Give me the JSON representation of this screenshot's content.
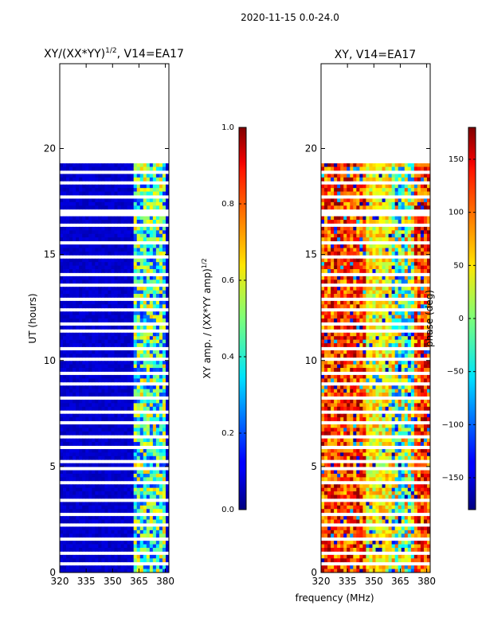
{
  "chart_data": {
    "suptitle": "2020-11-15 0.0-24.0",
    "xlabel_shared": "frequency (MHz)",
    "panels": [
      {
        "type": "heatmap",
        "title_main": "XY/(XX*YY)",
        "title_sup": "1/2",
        "title_tail": ", V14=EA17",
        "ylabel": "UT (hours)",
        "xlim": [
          320,
          382
        ],
        "ylim": [
          0,
          24
        ],
        "xticks": [
          "320",
          "335",
          "350",
          "365",
          "380"
        ],
        "xtick_values": [
          320,
          335,
          350,
          365,
          380
        ],
        "yticks": [
          "0",
          "5",
          "10",
          "15",
          "20"
        ],
        "ytick_values": [
          0,
          5,
          10,
          15,
          20
        ],
        "data_ut_range": [
          0,
          19.3
        ],
        "colorbar": {
          "label_main": "XY amp. / (XX*YY amp)",
          "label_sup": "1/2",
          "range": [
            0.0,
            1.0
          ],
          "ticks": [
            "0.0",
            "0.2",
            "0.4",
            "0.6",
            "0.8",
            "1.0"
          ],
          "tick_values": [
            0.0,
            0.2,
            0.4,
            0.6,
            0.8,
            1.0
          ]
        }
      },
      {
        "type": "heatmap",
        "title": "XY, V14=EA17",
        "ylabel": "",
        "xlim": [
          320,
          382
        ],
        "ylim": [
          0,
          24
        ],
        "xticks": [
          "320",
          "335",
          "350",
          "365",
          "380"
        ],
        "xtick_values": [
          320,
          335,
          350,
          365,
          380
        ],
        "yticks": [
          "0",
          "5",
          "10",
          "15",
          "20"
        ],
        "ytick_values": [
          0,
          5,
          10,
          15,
          20
        ],
        "data_ut_range": [
          0,
          19.3
        ],
        "colorbar": {
          "label": "phase (deg)",
          "range": [
            -180,
            180
          ],
          "ticks": [
            "−150",
            "−100",
            "−50",
            "0",
            "50",
            "100",
            "150"
          ],
          "tick_values": [
            -150,
            -100,
            -50,
            0,
            50,
            100,
            150
          ]
        }
      }
    ],
    "colormap": "jet"
  }
}
